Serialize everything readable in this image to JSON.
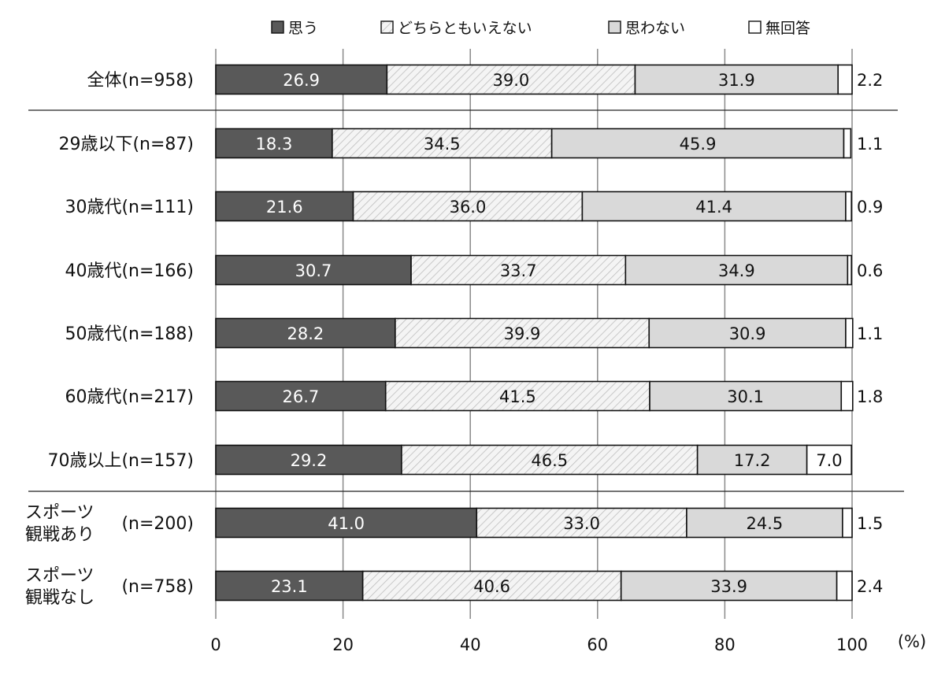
{
  "chart_data": {
    "type": "bar",
    "orientation": "horizontal",
    "stacked": true,
    "percent_unit": "(%)",
    "xlim": [
      0,
      100
    ],
    "xticks": [
      0,
      20,
      40,
      60,
      80,
      100
    ],
    "grid": "vertical",
    "legend_position": "top",
    "categories": [
      {
        "label": "全体(n=958)"
      },
      {
        "label": "29歳以下(n=87)"
      },
      {
        "label": "30歳代(n=111)"
      },
      {
        "label": "40歳代(n=166)"
      },
      {
        "label": "50歳代(n=188)"
      },
      {
        "label": "60歳代(n=217)"
      },
      {
        "label": "70歳以上(n=157)"
      },
      {
        "label": "スポーツ",
        "label2": "観戦あり",
        "n": "(n=200)"
      },
      {
        "label": "スポーツ",
        "label2": "観戦なし",
        "n": "(n=758)"
      }
    ],
    "series": [
      {
        "name": "思う",
        "color": "#595959",
        "text_color": "#ffffff",
        "values": [
          26.9,
          18.3,
          21.6,
          30.7,
          28.2,
          26.7,
          29.2,
          41.0,
          23.1
        ]
      },
      {
        "name": "どちらともいえない",
        "color": "#f2f2f2",
        "pattern": "diagonal-hatch",
        "text_color": "#111111",
        "values": [
          39.0,
          34.5,
          36.0,
          33.7,
          39.9,
          41.5,
          46.5,
          33.0,
          40.6
        ]
      },
      {
        "name": "思わない",
        "color": "#d9d9d9",
        "text_color": "#111111",
        "values": [
          31.9,
          45.9,
          41.4,
          34.9,
          30.9,
          30.1,
          17.2,
          24.5,
          33.9
        ]
      },
      {
        "name": "無回答",
        "color": "#ffffff",
        "text_color": "#111111",
        "values": [
          2.2,
          1.1,
          0.9,
          0.6,
          1.1,
          1.8,
          7.0,
          1.5,
          2.4
        ]
      }
    ]
  }
}
